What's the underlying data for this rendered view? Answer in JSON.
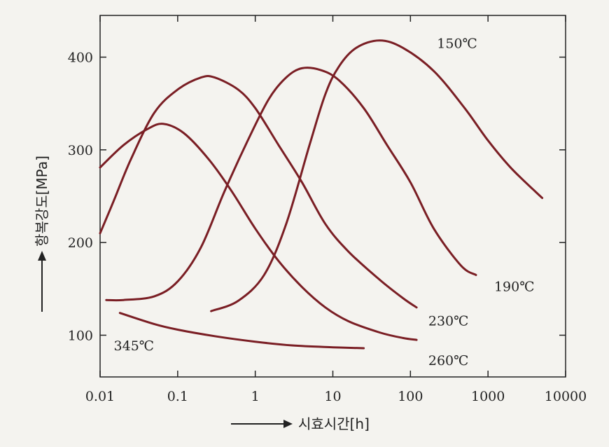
{
  "chart_data": {
    "type": "line",
    "xlabel": "시효시간[h]",
    "ylabel": "항복강도[MPa]",
    "x_scale": "log",
    "xlim": [
      0.01,
      10000
    ],
    "ylim": [
      55,
      445
    ],
    "x_ticks": [
      0.01,
      0.1,
      1,
      10,
      100,
      1000,
      10000
    ],
    "x_tick_labels": [
      "0.01",
      "0.1",
      "1",
      "10",
      "100",
      "1000",
      "10000"
    ],
    "y_ticks": [
      100,
      200,
      300,
      400
    ],
    "y_tick_labels": [
      "100",
      "200",
      "300",
      "400"
    ],
    "grid": false,
    "line_color": "#7a1e24",
    "series": [
      {
        "name": "150℃",
        "label_x": 220,
        "label_y": 415,
        "points": [
          [
            0.27,
            126
          ],
          [
            0.6,
            137
          ],
          [
            1.3,
            165
          ],
          [
            2.5,
            220
          ],
          [
            5,
            305
          ],
          [
            8,
            360
          ],
          [
            12,
            390
          ],
          [
            20,
            410
          ],
          [
            40,
            418
          ],
          [
            80,
            410
          ],
          [
            200,
            385
          ],
          [
            500,
            345
          ],
          [
            1000,
            310
          ],
          [
            2000,
            280
          ],
          [
            5000,
            248
          ]
        ]
      },
      {
        "name": "190℃",
        "label_x": 1200,
        "label_y": 153,
        "points": [
          [
            0.012,
            138
          ],
          [
            0.02,
            138
          ],
          [
            0.05,
            142
          ],
          [
            0.1,
            158
          ],
          [
            0.2,
            195
          ],
          [
            0.4,
            255
          ],
          [
            0.8,
            310
          ],
          [
            1.5,
            355
          ],
          [
            2.5,
            378
          ],
          [
            4,
            388
          ],
          [
            7,
            386
          ],
          [
            12,
            375
          ],
          [
            25,
            345
          ],
          [
            50,
            305
          ],
          [
            100,
            265
          ],
          [
            200,
            215
          ],
          [
            450,
            175
          ],
          [
            700,
            165
          ]
        ]
      },
      {
        "name": "230℃",
        "label_x": 170,
        "label_y": 116,
        "points": [
          [
            0.01,
            210
          ],
          [
            0.015,
            245
          ],
          [
            0.025,
            290
          ],
          [
            0.05,
            340
          ],
          [
            0.1,
            365
          ],
          [
            0.2,
            378
          ],
          [
            0.3,
            378
          ],
          [
            0.6,
            365
          ],
          [
            1,
            345
          ],
          [
            2,
            305
          ],
          [
            4,
            265
          ],
          [
            8,
            220
          ],
          [
            16,
            190
          ],
          [
            40,
            160
          ],
          [
            80,
            140
          ],
          [
            120,
            130
          ]
        ]
      },
      {
        "name": "260℃",
        "label_x": 170,
        "label_y": 73,
        "points": [
          [
            0.01,
            281
          ],
          [
            0.02,
            305
          ],
          [
            0.04,
            322
          ],
          [
            0.065,
            328
          ],
          [
            0.12,
            318
          ],
          [
            0.25,
            290
          ],
          [
            0.5,
            255
          ],
          [
            1,
            215
          ],
          [
            2,
            180
          ],
          [
            4,
            152
          ],
          [
            8,
            130
          ],
          [
            16,
            115
          ],
          [
            40,
            103
          ],
          [
            80,
            97
          ],
          [
            120,
            95
          ]
        ]
      },
      {
        "name": "345℃",
        "label_x": 0.015,
        "label_y": 89,
        "points": [
          [
            0.018,
            124
          ],
          [
            0.05,
            112
          ],
          [
            0.1,
            106
          ],
          [
            0.3,
            99
          ],
          [
            1,
            93
          ],
          [
            3,
            89
          ],
          [
            10,
            87
          ],
          [
            25,
            86
          ]
        ]
      }
    ]
  }
}
